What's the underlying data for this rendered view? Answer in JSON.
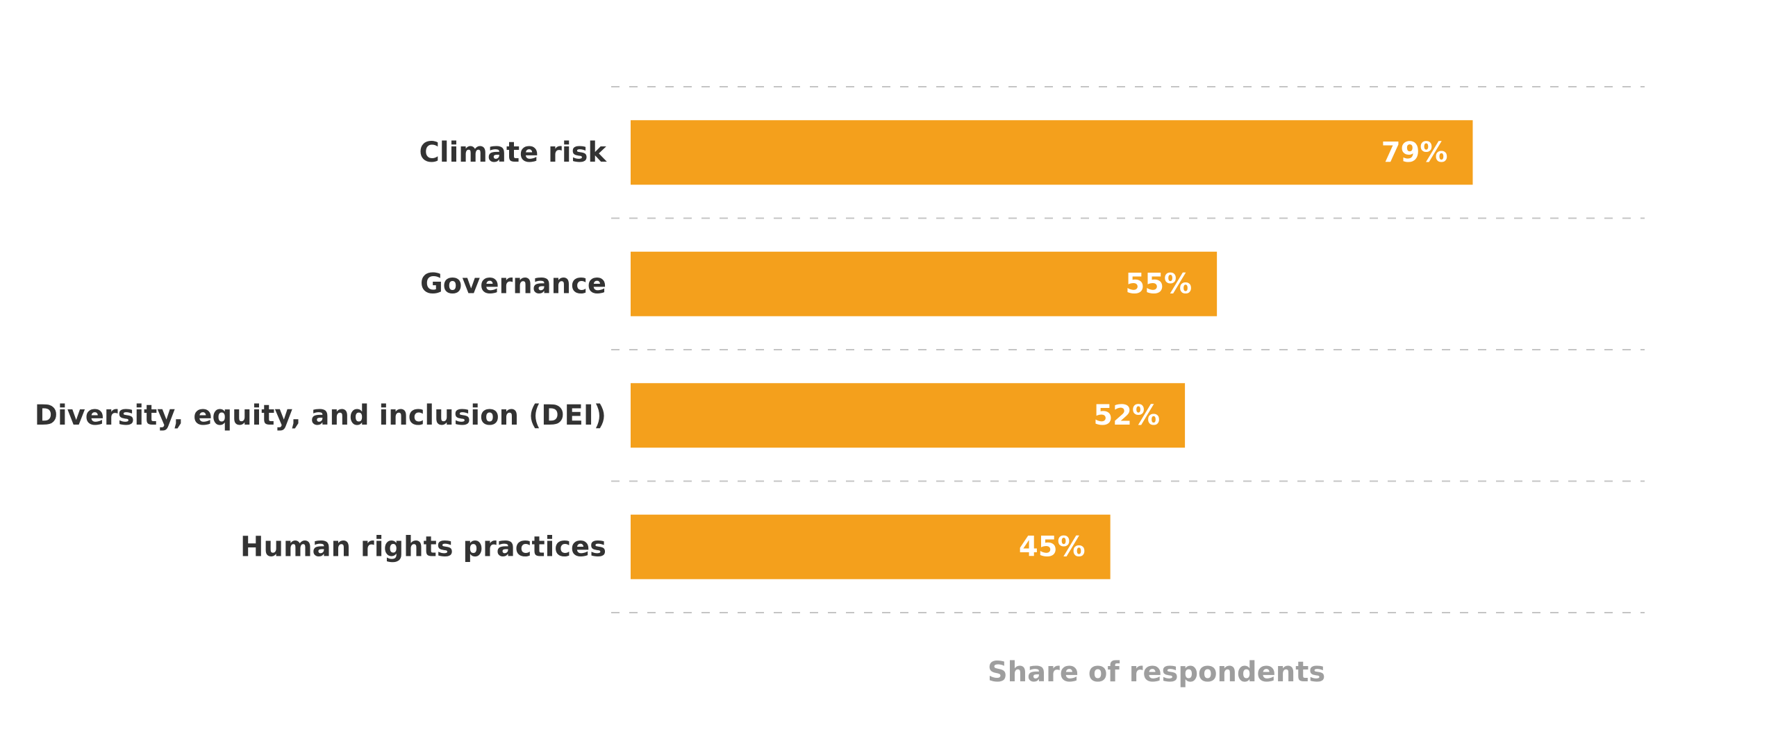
{
  "chart_data": {
    "type": "bar",
    "orientation": "horizontal",
    "categories": [
      "Climate risk",
      "Governance",
      "Diversity, equity, and inclusion (DEI)",
      "Human rights practices"
    ],
    "values": [
      79,
      55,
      52,
      45
    ],
    "value_labels": [
      "79%",
      "55%",
      "52%",
      "45%"
    ],
    "title": "",
    "xlabel": "Share of respondents",
    "ylabel": "",
    "xlim": [
      0,
      92
    ],
    "grid": true,
    "legend": "none",
    "bar_color": "#F4A01C",
    "value_label_color": "#ffffff",
    "gridline_color": "#c4c4c4"
  }
}
